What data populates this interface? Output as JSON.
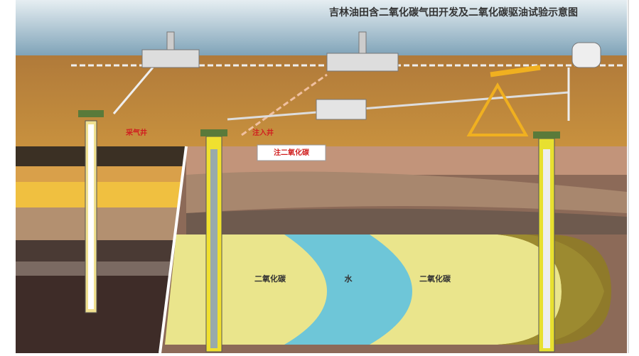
{
  "header": {
    "title": "吉林油田含二氧化碳气田开发及二氧化碳驱油试验示意图"
  },
  "labels": {
    "gas_well": "采气井",
    "injection_well": "注入井",
    "inject_box": "注二氧化碳"
  },
  "zones": [
    "二氧化碳",
    "水",
    "二氧化碳"
  ]
}
